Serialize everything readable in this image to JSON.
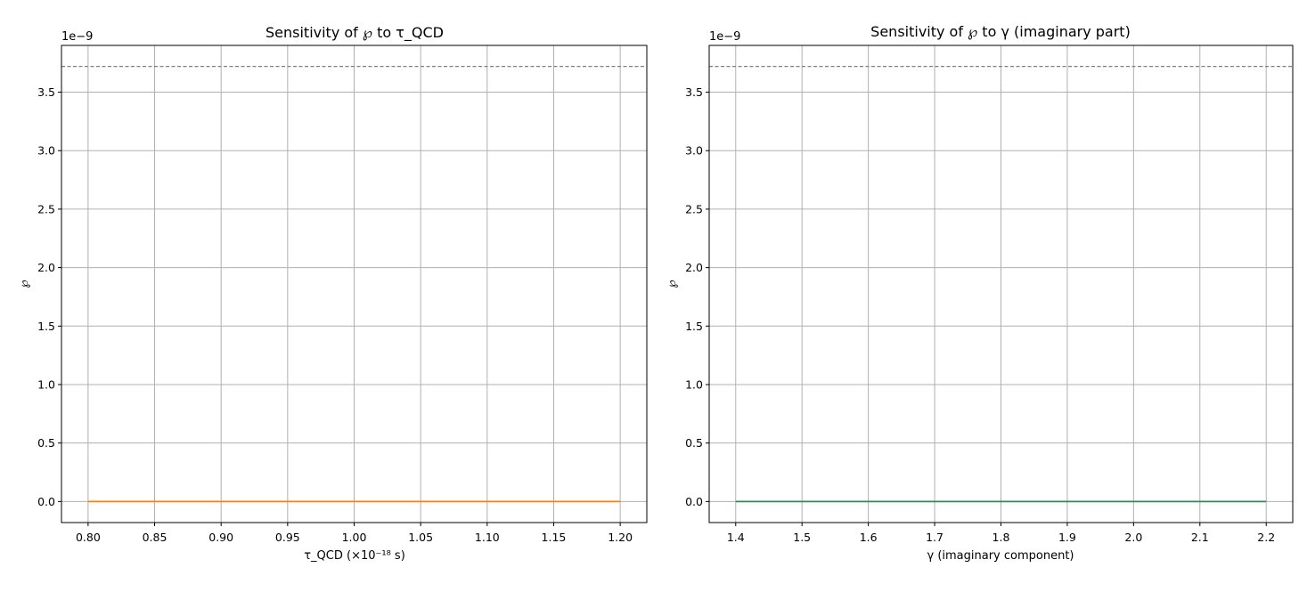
{
  "chart_data": [
    {
      "type": "line",
      "title": "Sensitivity of ℘ to τ_QCD",
      "xlabel": "τ_QCD (×10⁻¹⁸ s)",
      "ylabel": "℘",
      "y_offset_label": "1e−9",
      "xlim": [
        0.78,
        1.22
      ],
      "ylim": [
        -0.18,
        3.9
      ],
      "x_ticks": [
        0.8,
        0.85,
        0.9,
        0.95,
        1.0,
        1.05,
        1.1,
        1.15,
        1.2
      ],
      "x_tick_labels": [
        "0.80",
        "0.85",
        "0.90",
        "0.95",
        "1.00",
        "1.05",
        "1.10",
        "1.15",
        "1.20"
      ],
      "y_ticks": [
        0.0,
        0.5,
        1.0,
        1.5,
        2.0,
        2.5,
        3.0,
        3.5
      ],
      "y_tick_labels": [
        "0.0",
        "0.5",
        "1.0",
        "1.5",
        "2.0",
        "2.5",
        "3.0",
        "3.5"
      ],
      "grid": true,
      "reference_line": {
        "y": 3.72,
        "style": "dashed",
        "color": "#808080"
      },
      "series": [
        {
          "x": [
            0.8,
            1.2
          ],
          "y": [
            0.0,
            0.0
          ],
          "color": "#ff7f0e"
        }
      ]
    },
    {
      "type": "line",
      "title": "Sensitivity of ℘ to γ (imaginary part)",
      "xlabel": "γ (imaginary component)",
      "ylabel": "℘",
      "y_offset_label": "1e−9",
      "xlim": [
        1.36,
        2.24
      ],
      "ylim": [
        -0.18,
        3.9
      ],
      "x_ticks": [
        1.4,
        1.5,
        1.6,
        1.7,
        1.8,
        1.9,
        2.0,
        2.1,
        2.2
      ],
      "x_tick_labels": [
        "1.4",
        "1.5",
        "1.6",
        "1.7",
        "1.8",
        "1.9",
        "2.0",
        "2.1",
        "2.2"
      ],
      "y_ticks": [
        0.0,
        0.5,
        1.0,
        1.5,
        2.0,
        2.5,
        3.0,
        3.5
      ],
      "y_tick_labels": [
        "0.0",
        "0.5",
        "1.0",
        "1.5",
        "2.0",
        "2.5",
        "3.0",
        "3.5"
      ],
      "grid": true,
      "reference_line": {
        "y": 3.72,
        "style": "dashed",
        "color": "#808080"
      },
      "series": [
        {
          "x": [
            1.4,
            2.2
          ],
          "y": [
            0.0,
            0.0
          ],
          "color": "#2e8b57"
        }
      ]
    }
  ]
}
